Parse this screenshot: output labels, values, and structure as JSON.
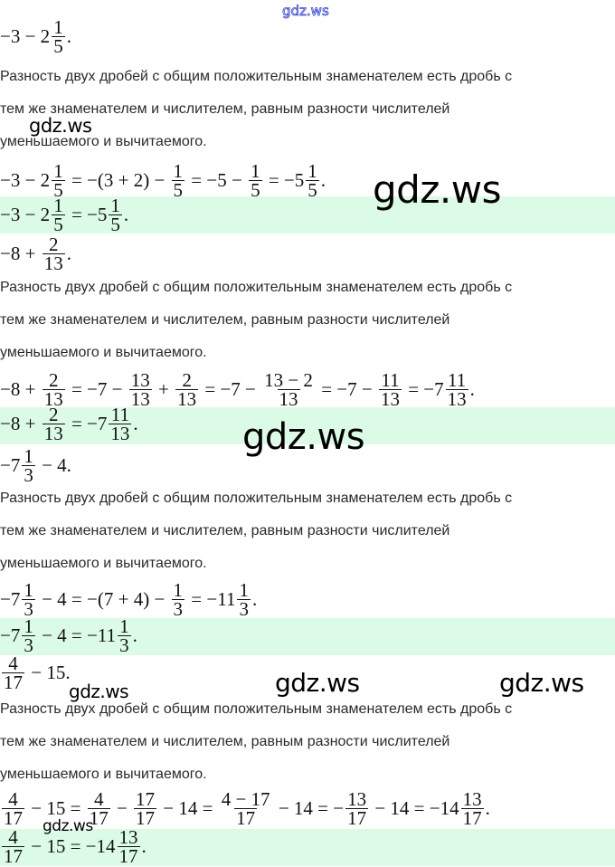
{
  "watermark": "gdz.ws",
  "accent_band_color": "#dcfbe6",
  "rule_lines": [
    "Разность двух дробей с общим положительным знаменателем есть дробь с",
    "тем же знаменателем и числителем, равным разности числителей",
    "уменьшаемого и вычитаемого."
  ],
  "problems": [
    {
      "expression": [
        {
          "t": "−3 − 2"
        },
        {
          "n": "1",
          "d": "5"
        },
        {
          "t": "."
        }
      ],
      "solution": [
        {
          "t": "−3 − 2"
        },
        {
          "n": "1",
          "d": "5"
        },
        {
          "t": " = −(3 + 2) − "
        },
        {
          "n": "1",
          "d": "5"
        },
        {
          "t": " = −5 − "
        },
        {
          "n": "1",
          "d": "5"
        },
        {
          "t": " = −5"
        },
        {
          "n": "1",
          "d": "5"
        },
        {
          "t": "."
        }
      ],
      "answer": [
        {
          "t": "−3 − 2"
        },
        {
          "n": "1",
          "d": "5"
        },
        {
          "t": " = −5"
        },
        {
          "n": "1",
          "d": "5"
        },
        {
          "t": "."
        }
      ]
    },
    {
      "expression": [
        {
          "t": "−8 + "
        },
        {
          "n": "2",
          "d": "13"
        },
        {
          "t": "."
        }
      ],
      "solution": [
        {
          "t": "−8 + "
        },
        {
          "n": "2",
          "d": "13"
        },
        {
          "t": " = −7 − "
        },
        {
          "n": "13",
          "d": "13"
        },
        {
          "t": " + "
        },
        {
          "n": "2",
          "d": "13"
        },
        {
          "t": " = −7 − "
        },
        {
          "n": "13 − 2",
          "d": "13"
        },
        {
          "t": " = −7 − "
        },
        {
          "n": "11",
          "d": "13"
        },
        {
          "t": " = −7"
        },
        {
          "n": "11",
          "d": "13"
        },
        {
          "t": "."
        }
      ],
      "answer": [
        {
          "t": "−8 + "
        },
        {
          "n": "2",
          "d": "13"
        },
        {
          "t": " = −7"
        },
        {
          "n": "11",
          "d": "13"
        },
        {
          "t": "."
        }
      ]
    },
    {
      "expression": [
        {
          "t": "−7"
        },
        {
          "n": "1",
          "d": "3"
        },
        {
          "t": " − 4."
        }
      ],
      "solution": [
        {
          "t": "−7"
        },
        {
          "n": "1",
          "d": "3"
        },
        {
          "t": " − 4 = −(7 + 4) − "
        },
        {
          "n": "1",
          "d": "3"
        },
        {
          "t": " = −11"
        },
        {
          "n": "1",
          "d": "3"
        },
        {
          "t": "."
        }
      ],
      "answer": [
        {
          "t": "−7"
        },
        {
          "n": "1",
          "d": "3"
        },
        {
          "t": " − 4 = −11"
        },
        {
          "n": "1",
          "d": "3"
        },
        {
          "t": "."
        }
      ]
    },
    {
      "expression": [
        {
          "n": "4",
          "d": "17"
        },
        {
          "t": " − 15."
        }
      ],
      "solution": [
        {
          "n": "4",
          "d": "17"
        },
        {
          "t": " − 15 = "
        },
        {
          "n": "4",
          "d": "17"
        },
        {
          "t": " − "
        },
        {
          "n": "17",
          "d": "17"
        },
        {
          "t": " − 14 = "
        },
        {
          "n": "4 − 17",
          "d": "17"
        },
        {
          "t": " − 14 = −"
        },
        {
          "n": "13",
          "d": "17"
        },
        {
          "t": " − 14 = −14"
        },
        {
          "n": "13",
          "d": "17"
        },
        {
          "t": "."
        }
      ],
      "answer": [
        {
          "n": "4",
          "d": "17"
        },
        {
          "t": " − 15 = −14"
        },
        {
          "n": "13",
          "d": "17"
        },
        {
          "t": "."
        }
      ]
    }
  ]
}
